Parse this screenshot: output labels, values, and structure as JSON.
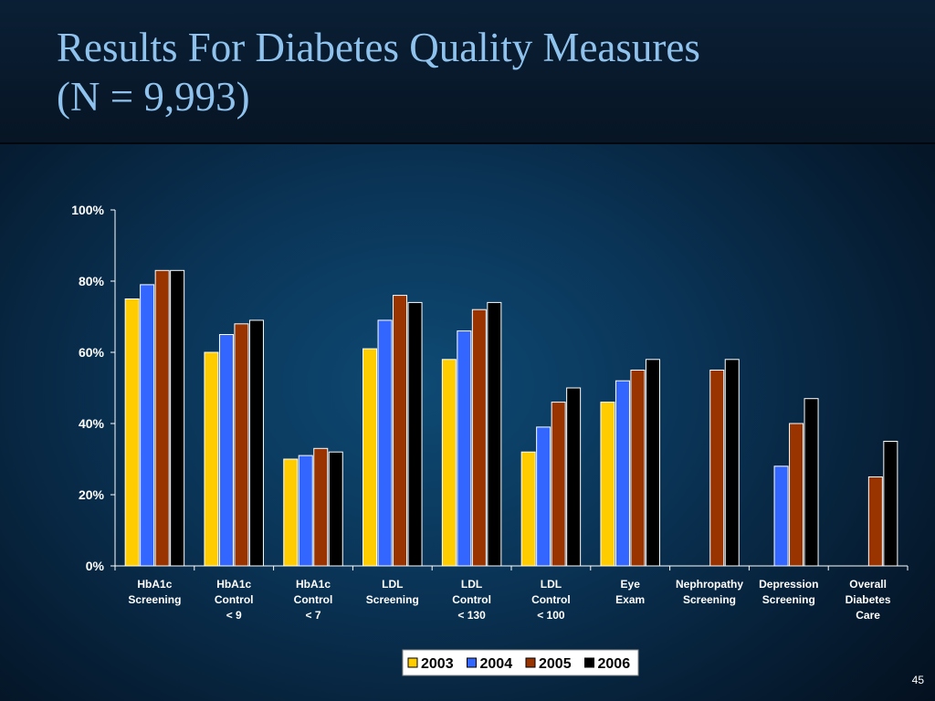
{
  "slide": {
    "title_line_1": "Results For Diabetes Quality Measures",
    "title_line_2": "(N = 9,993)",
    "slide_number": "45"
  },
  "chart_data": {
    "type": "bar",
    "categories": [
      [
        "HbA1c",
        "Screening"
      ],
      [
        "HbA1c",
        "Control",
        "< 9"
      ],
      [
        "HbA1c",
        "Control",
        "< 7"
      ],
      [
        "LDL",
        "Screening"
      ],
      [
        "LDL",
        "Control",
        "< 130"
      ],
      [
        "LDL",
        "Control",
        "< 100"
      ],
      [
        "Eye",
        "Exam"
      ],
      [
        "Nephropathy",
        "Screening"
      ],
      [
        "Depression",
        "Screening"
      ],
      [
        "Overall",
        "Diabetes",
        "Care"
      ]
    ],
    "series": [
      {
        "name": "2003",
        "color": "#ffcc00",
        "values": [
          75,
          60,
          30,
          61,
          58,
          32,
          46,
          null,
          null,
          null
        ]
      },
      {
        "name": "2004",
        "color": "#3366ff",
        "values": [
          79,
          65,
          31,
          69,
          66,
          39,
          52,
          null,
          28,
          null
        ]
      },
      {
        "name": "2005",
        "color": "#993300",
        "values": [
          83,
          68,
          33,
          76,
          72,
          46,
          55,
          55,
          40,
          25
        ]
      },
      {
        "name": "2006",
        "color": "#000000",
        "values": [
          83,
          69,
          32,
          74,
          74,
          50,
          58,
          58,
          47,
          35
        ]
      }
    ],
    "ylim": [
      0,
      100
    ],
    "yticks": [
      "0%",
      "20%",
      "40%",
      "60%",
      "80%",
      "100%"
    ],
    "ytick_values": [
      0,
      20,
      40,
      60,
      80,
      100
    ],
    "grid": false,
    "legend_position": "bottom"
  }
}
